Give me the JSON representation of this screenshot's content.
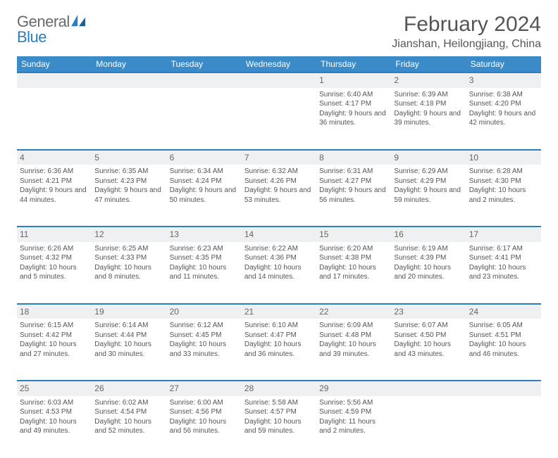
{
  "logo": {
    "text1": "General",
    "text2": "Blue"
  },
  "title": "February 2024",
  "location": "Jianshan, Heilongjiang, China",
  "style": {
    "header_bg": "#3b8bc9",
    "header_fg": "#ffffff",
    "row_divider": "#2a7fbf",
    "daynum_bg": "#eef0f1",
    "text_color": "#555555",
    "page_bg": "#ffffff",
    "th_fontsize": 12,
    "cell_fontsize": 10,
    "title_fontsize": 30,
    "location_fontsize": 16
  },
  "day_headers": [
    "Sunday",
    "Monday",
    "Tuesday",
    "Wednesday",
    "Thursday",
    "Friday",
    "Saturday"
  ],
  "weeks": [
    [
      null,
      null,
      null,
      null,
      {
        "n": "1",
        "sr": "Sunrise: 6:40 AM",
        "ss": "Sunset: 4:17 PM",
        "dl": "Daylight: 9 hours and 36 minutes."
      },
      {
        "n": "2",
        "sr": "Sunrise: 6:39 AM",
        "ss": "Sunset: 4:18 PM",
        "dl": "Daylight: 9 hours and 39 minutes."
      },
      {
        "n": "3",
        "sr": "Sunrise: 6:38 AM",
        "ss": "Sunset: 4:20 PM",
        "dl": "Daylight: 9 hours and 42 minutes."
      }
    ],
    [
      {
        "n": "4",
        "sr": "Sunrise: 6:36 AM",
        "ss": "Sunset: 4:21 PM",
        "dl": "Daylight: 9 hours and 44 minutes."
      },
      {
        "n": "5",
        "sr": "Sunrise: 6:35 AM",
        "ss": "Sunset: 4:23 PM",
        "dl": "Daylight: 9 hours and 47 minutes."
      },
      {
        "n": "6",
        "sr": "Sunrise: 6:34 AM",
        "ss": "Sunset: 4:24 PM",
        "dl": "Daylight: 9 hours and 50 minutes."
      },
      {
        "n": "7",
        "sr": "Sunrise: 6:32 AM",
        "ss": "Sunset: 4:26 PM",
        "dl": "Daylight: 9 hours and 53 minutes."
      },
      {
        "n": "8",
        "sr": "Sunrise: 6:31 AM",
        "ss": "Sunset: 4:27 PM",
        "dl": "Daylight: 9 hours and 56 minutes."
      },
      {
        "n": "9",
        "sr": "Sunrise: 6:29 AM",
        "ss": "Sunset: 4:29 PM",
        "dl": "Daylight: 9 hours and 59 minutes."
      },
      {
        "n": "10",
        "sr": "Sunrise: 6:28 AM",
        "ss": "Sunset: 4:30 PM",
        "dl": "Daylight: 10 hours and 2 minutes."
      }
    ],
    [
      {
        "n": "11",
        "sr": "Sunrise: 6:26 AM",
        "ss": "Sunset: 4:32 PM",
        "dl": "Daylight: 10 hours and 5 minutes."
      },
      {
        "n": "12",
        "sr": "Sunrise: 6:25 AM",
        "ss": "Sunset: 4:33 PM",
        "dl": "Daylight: 10 hours and 8 minutes."
      },
      {
        "n": "13",
        "sr": "Sunrise: 6:23 AM",
        "ss": "Sunset: 4:35 PM",
        "dl": "Daylight: 10 hours and 11 minutes."
      },
      {
        "n": "14",
        "sr": "Sunrise: 6:22 AM",
        "ss": "Sunset: 4:36 PM",
        "dl": "Daylight: 10 hours and 14 minutes."
      },
      {
        "n": "15",
        "sr": "Sunrise: 6:20 AM",
        "ss": "Sunset: 4:38 PM",
        "dl": "Daylight: 10 hours and 17 minutes."
      },
      {
        "n": "16",
        "sr": "Sunrise: 6:19 AM",
        "ss": "Sunset: 4:39 PM",
        "dl": "Daylight: 10 hours and 20 minutes."
      },
      {
        "n": "17",
        "sr": "Sunrise: 6:17 AM",
        "ss": "Sunset: 4:41 PM",
        "dl": "Daylight: 10 hours and 23 minutes."
      }
    ],
    [
      {
        "n": "18",
        "sr": "Sunrise: 6:15 AM",
        "ss": "Sunset: 4:42 PM",
        "dl": "Daylight: 10 hours and 27 minutes."
      },
      {
        "n": "19",
        "sr": "Sunrise: 6:14 AM",
        "ss": "Sunset: 4:44 PM",
        "dl": "Daylight: 10 hours and 30 minutes."
      },
      {
        "n": "20",
        "sr": "Sunrise: 6:12 AM",
        "ss": "Sunset: 4:45 PM",
        "dl": "Daylight: 10 hours and 33 minutes."
      },
      {
        "n": "21",
        "sr": "Sunrise: 6:10 AM",
        "ss": "Sunset: 4:47 PM",
        "dl": "Daylight: 10 hours and 36 minutes."
      },
      {
        "n": "22",
        "sr": "Sunrise: 6:09 AM",
        "ss": "Sunset: 4:48 PM",
        "dl": "Daylight: 10 hours and 39 minutes."
      },
      {
        "n": "23",
        "sr": "Sunrise: 6:07 AM",
        "ss": "Sunset: 4:50 PM",
        "dl": "Daylight: 10 hours and 43 minutes."
      },
      {
        "n": "24",
        "sr": "Sunrise: 6:05 AM",
        "ss": "Sunset: 4:51 PM",
        "dl": "Daylight: 10 hours and 46 minutes."
      }
    ],
    [
      {
        "n": "25",
        "sr": "Sunrise: 6:03 AM",
        "ss": "Sunset: 4:53 PM",
        "dl": "Daylight: 10 hours and 49 minutes."
      },
      {
        "n": "26",
        "sr": "Sunrise: 6:02 AM",
        "ss": "Sunset: 4:54 PM",
        "dl": "Daylight: 10 hours and 52 minutes."
      },
      {
        "n": "27",
        "sr": "Sunrise: 6:00 AM",
        "ss": "Sunset: 4:56 PM",
        "dl": "Daylight: 10 hours and 56 minutes."
      },
      {
        "n": "28",
        "sr": "Sunrise: 5:58 AM",
        "ss": "Sunset: 4:57 PM",
        "dl": "Daylight: 10 hours and 59 minutes."
      },
      {
        "n": "29",
        "sr": "Sunrise: 5:56 AM",
        "ss": "Sunset: 4:59 PM",
        "dl": "Daylight: 11 hours and 2 minutes."
      },
      null,
      null
    ]
  ]
}
